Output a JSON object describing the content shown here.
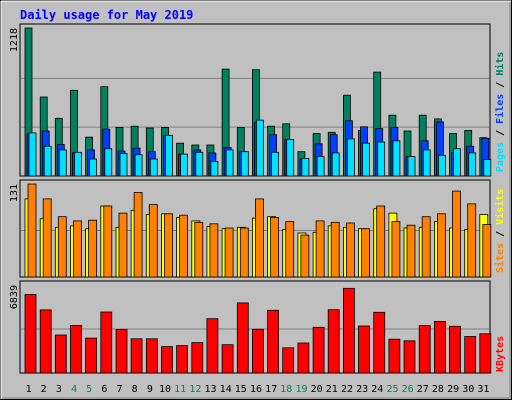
{
  "title": "Daily usage for May 2019",
  "colors": {
    "background": "#c0c0c0",
    "title": "#0000ff",
    "hits": "#00805c",
    "files": "#0040ff",
    "pages": "#00e0ff",
    "visits": "#ffff00",
    "sites": "#ff8000",
    "kbytes": "#ff0000",
    "weekend_day": "#00805c",
    "weekday": "#000000"
  },
  "chart_data": [
    {
      "type": "bar",
      "panel": "hits",
      "ymax_label": "1218",
      "ylim": [
        0,
        1218
      ],
      "legend": [
        "Pages",
        "Files",
        "Hits"
      ],
      "categories": [
        "1",
        "2",
        "3",
        "4",
        "5",
        "6",
        "7",
        "8",
        "9",
        "10",
        "11",
        "12",
        "13",
        "14",
        "15",
        "16",
        "17",
        "18",
        "19",
        "20",
        "21",
        "22",
        "23",
        "24",
        "25",
        "26",
        "27",
        "28",
        "29",
        "30",
        "31"
      ],
      "series": [
        {
          "name": "Hits",
          "values": [
            1218,
            650,
            475,
            705,
            320,
            735,
            400,
            410,
            395,
            400,
            270,
            255,
            255,
            880,
            400,
            875,
            410,
            430,
            200,
            350,
            360,
            665,
            375,
            855,
            500,
            370,
            500,
            470,
            350,
            375,
            315
          ]
        },
        {
          "name": "Files",
          "values": [
            345,
            370,
            260,
            190,
            215,
            385,
            205,
            230,
            200,
            330,
            180,
            215,
            190,
            235,
            200,
            440,
            340,
            300,
            140,
            265,
            340,
            455,
            405,
            390,
            400,
            160,
            290,
            445,
            195,
            245,
            310
          ]
        },
        {
          "name": "Pages",
          "values": [
            355,
            245,
            215,
            195,
            140,
            225,
            185,
            175,
            140,
            335,
            180,
            195,
            120,
            215,
            200,
            460,
            195,
            300,
            145,
            160,
            190,
            305,
            270,
            280,
            290,
            160,
            215,
            170,
            225,
            190,
            135
          ]
        }
      ]
    },
    {
      "type": "bar",
      "panel": "visits",
      "ymax_label": "131",
      "ylim": [
        0,
        131
      ],
      "legend": [
        "Sites",
        "Visits"
      ],
      "categories": [
        "1",
        "2",
        "3",
        "4",
        "5",
        "6",
        "7",
        "8",
        "9",
        "10",
        "11",
        "12",
        "13",
        "14",
        "15",
        "16",
        "17",
        "18",
        "19",
        "20",
        "21",
        "22",
        "23",
        "24",
        "25",
        "26",
        "27",
        "28",
        "29",
        "30",
        "31"
      ],
      "series": [
        {
          "name": "Visits",
          "values": [
            110,
            82,
            70,
            72,
            68,
            100,
            70,
            94,
            88,
            89,
            84,
            79,
            71,
            68,
            70,
            83,
            85,
            67,
            62,
            63,
            72,
            70,
            68,
            96,
            90,
            69,
            70,
            78,
            69,
            67,
            88
          ]
        },
        {
          "name": "Sites",
          "values": [
            131,
            110,
            85,
            79,
            80,
            100,
            90,
            119,
            102,
            89,
            87,
            77,
            75,
            69,
            69,
            110,
            84,
            78,
            59,
            79,
            77,
            76,
            68,
            100,
            78,
            73,
            85,
            89,
            121,
            103,
            74
          ]
        }
      ]
    },
    {
      "type": "bar",
      "panel": "kbytes",
      "ymax_label": "6839",
      "ylim": [
        0,
        6839
      ],
      "legend": [
        "KBytes"
      ],
      "categories": [
        "1",
        "2",
        "3",
        "4",
        "5",
        "6",
        "7",
        "8",
        "9",
        "10",
        "11",
        "12",
        "13",
        "14",
        "15",
        "16",
        "17",
        "18",
        "19",
        "20",
        "21",
        "22",
        "23",
        "24",
        "25",
        "26",
        "27",
        "28",
        "29",
        "30",
        "31"
      ],
      "series": [
        {
          "name": "KBytes",
          "values": [
            6100,
            4900,
            2950,
            3700,
            2710,
            4740,
            3375,
            2660,
            2660,
            2050,
            2130,
            2360,
            4220,
            2200,
            5450,
            3400,
            4870,
            1960,
            2330,
            3550,
            4920,
            6580,
            3650,
            4720,
            2630,
            2500,
            3680,
            4010,
            3630,
            2840,
            3050
          ]
        }
      ]
    }
  ],
  "day_labels": [
    "1",
    "2",
    "3",
    "4",
    "5",
    "6",
    "7",
    "8",
    "9",
    "10",
    "11",
    "12",
    "13",
    "14",
    "15",
    "16",
    "17",
    "18",
    "19",
    "20",
    "21",
    "22",
    "23",
    "24",
    "25",
    "26",
    "27",
    "28",
    "29",
    "30",
    "31"
  ],
  "weekend_days": [
    "4",
    "5",
    "11",
    "12",
    "18",
    "19",
    "25",
    "26"
  ]
}
